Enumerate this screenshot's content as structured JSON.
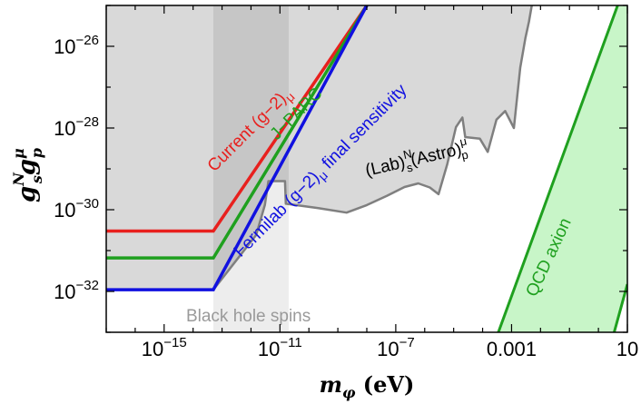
{
  "chart_data": {
    "type": "area",
    "title": "",
    "xlabel": "m_φ (eV)",
    "ylabel": "g_s^N g_p^μ",
    "x_scale": "log",
    "y_scale": "log",
    "xlim": [
      1e-17,
      10
    ],
    "ylim": [
      1e-33,
      1e-25
    ],
    "x_ticks": [
      {
        "value": 1e-15,
        "label_base": "10",
        "label_exp": "−15"
      },
      {
        "value": 1e-11,
        "label_base": "10",
        "label_exp": "−11"
      },
      {
        "value": 1e-07,
        "label_base": "10",
        "label_exp": "−7"
      },
      {
        "value": 0.001,
        "label_base": "0.001",
        "label_exp": ""
      },
      {
        "value": 10,
        "label_base": "10",
        "label_exp": ""
      }
    ],
    "y_ticks": [
      {
        "value": 1e-32,
        "label_base": "10",
        "label_exp": "−32"
      },
      {
        "value": 1e-30,
        "label_base": "10",
        "label_exp": "−30"
      },
      {
        "value": 1e-28,
        "label_base": "10",
        "label_exp": "−28"
      },
      {
        "value": 1e-26,
        "label_base": "10",
        "label_exp": "−26"
      }
    ],
    "colors": {
      "lab_astro_fill": "#d9d9d9",
      "lab_astro_edge": "#7f7f7f",
      "black_hole_band": "#ededed",
      "black_hole_overlap": "#c6c6c6",
      "current_g2": "#e8201e",
      "jparc": "#1fa01f",
      "fermilab": "#1111e0",
      "qcd_fill": "#c8f5c8",
      "qcd_edge": "#1fa01f"
    },
    "series": [
      {
        "id": "current",
        "label": "Current (g−2)",
        "label_sub": "μ",
        "x": [
          1e-17,
          5e-14,
          1e-08
        ],
        "y": [
          3e-31,
          3e-31,
          1e-25
        ]
      },
      {
        "id": "jparc",
        "label": "J−PARC",
        "label_sub": "",
        "x": [
          1e-17,
          5e-14,
          1e-08
        ],
        "y": [
          6.6e-32,
          6.6e-32,
          1e-25
        ]
      },
      {
        "id": "fermilab",
        "label": "Fermilab (g−2)",
        "label_sub": "μ",
        "label_tail": " final sensitivity",
        "x": [
          1e-17,
          5e-14,
          1e-08
        ],
        "y": [
          1.1e-32,
          1.1e-32,
          1e-25
        ]
      }
    ],
    "regions": [
      {
        "id": "lab_astro",
        "label_parts": [
          "(Lab)",
          "N",
          "s",
          "(Astro)",
          "μ",
          "p"
        ],
        "boundary": [
          [
            1e-17,
            1.1e-32
          ],
          [
            5e-14,
            1.1e-32
          ],
          [
            1.5e-12,
            2.4e-31
          ],
          [
            3e-12,
            1.3e-30
          ],
          [
            4e-12,
            5e-30
          ],
          [
            1.5e-11,
            5e-30
          ],
          [
            1.6e-11,
            1.4e-30
          ],
          [
            2e-10,
            1.1e-30
          ],
          [
            2e-09,
            8.5e-31
          ],
          [
            1e-08,
            1.3e-30
          ],
          [
            5e-08,
            2.2e-30
          ],
          [
            2e-07,
            3.6e-30
          ],
          [
            6e-07,
            4.4e-30
          ],
          [
            1.5e-06,
            3.5e-30
          ],
          [
            3e-06,
            2.4e-30
          ],
          [
            6e-06,
            1.3e-29
          ],
          [
            1.2e-05,
            1.05e-28
          ],
          [
            2e-05,
            1.8e-28
          ],
          [
            2.5e-05,
            6e-29
          ],
          [
            8e-05,
            5.5e-29
          ],
          [
            0.00015,
            2.6e-29
          ],
          [
            0.0003,
            1.6e-28
          ],
          [
            0.0006,
            2.6e-28
          ],
          [
            0.0012,
            1e-28
          ],
          [
            0.002,
            3e-27
          ],
          [
            0.003,
            1.6e-26
          ],
          [
            0.004,
            4e-26
          ],
          [
            0.005,
            1e-25
          ],
          [
            1e-17,
            1e-25
          ]
        ]
      },
      {
        "id": "black_hole",
        "label": "Black hole spins",
        "xmin": 5e-14,
        "xmax": 2e-11
      },
      {
        "id": "qcd_axion",
        "label": "QCD axion",
        "left_edge": [
          [
            0.00035,
            1e-33
          ],
          [
            4.6,
            1e-25
          ]
        ],
        "right_edge": [
          [
            3.5,
            1e-33
          ],
          [
            10,
            1.5e-32
          ]
        ]
      }
    ]
  }
}
